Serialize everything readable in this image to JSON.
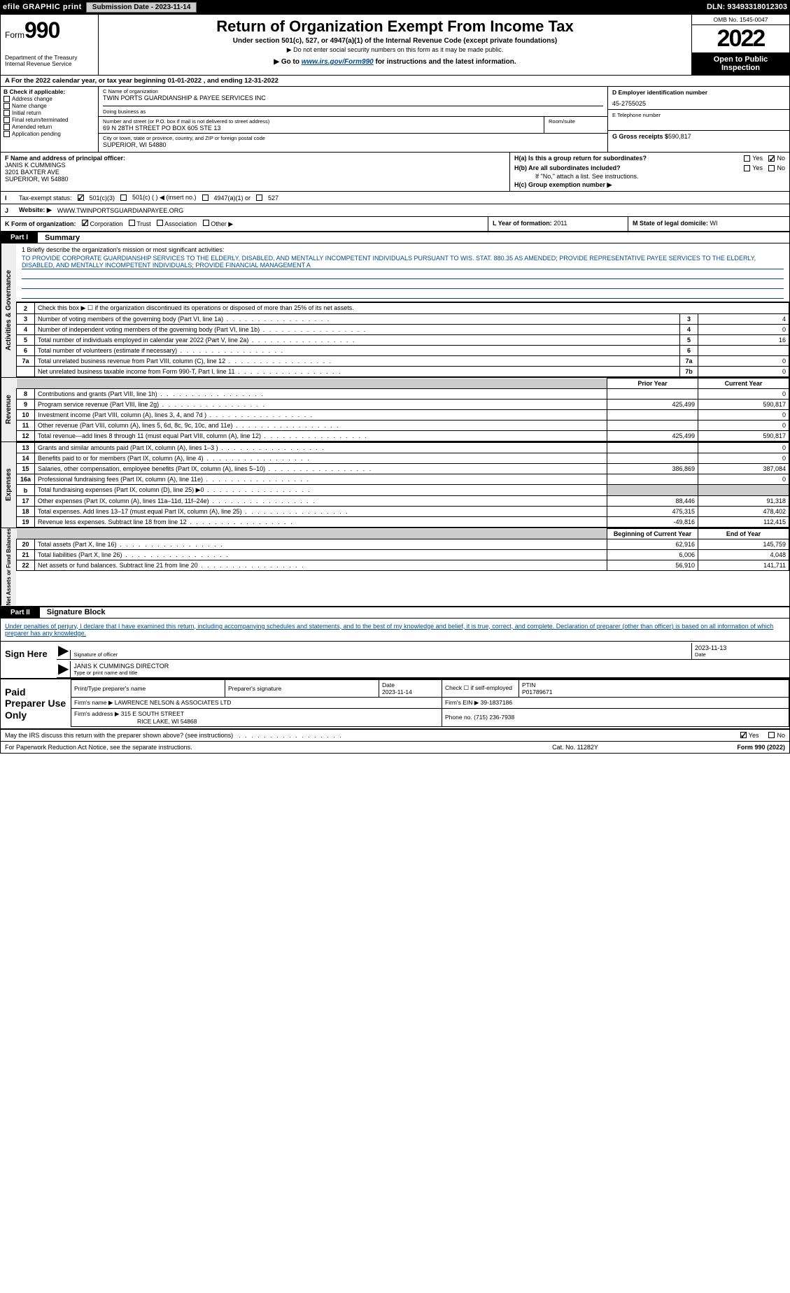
{
  "topbar": {
    "efile": "efile GRAPHIC print",
    "submission_label": "Submission Date - 2023-11-14",
    "dln": "DLN: 93493318012303"
  },
  "header": {
    "form_word": "Form",
    "form_number": "990",
    "title": "Return of Organization Exempt From Income Tax",
    "subtitle": "Under section 501(c), 527, or 4947(a)(1) of the Internal Revenue Code (except private foundations)",
    "note_ssn": "▶ Do not enter social security numbers on this form as it may be made public.",
    "goto_pre": "▶ Go to ",
    "goto_link": "www.irs.gov/Form990",
    "goto_post": " for instructions and the latest information.",
    "dept": "Department of the Treasury\nInternal Revenue Service",
    "omb": "OMB No. 1545-0047",
    "year": "2022",
    "open_public": "Open to Public Inspection"
  },
  "line_a": "A For the 2022 calendar year, or tax year beginning 01-01-2022    , and ending 12-31-2022",
  "box_b": {
    "label": "B Check if applicable:",
    "items": [
      "Address change",
      "Name change",
      "Initial return",
      "Final return/terminated",
      "Amended return",
      "Application pending"
    ]
  },
  "box_c": {
    "name_lbl": "C Name of organization",
    "name": "TWIN PORTS GUARDIANSHIP & PAYEE SERVICES INC",
    "dba_lbl": "Doing business as",
    "street_lbl": "Number and street (or P.O. box if mail is not delivered to street address)",
    "room_lbl": "Room/suite",
    "street": "69 N 28TH STREET PO BOX 605 STE 13",
    "city_lbl": "City or town, state or province, country, and ZIP or foreign postal code",
    "city": "SUPERIOR, WI  54880"
  },
  "box_d": {
    "ein_lbl": "D Employer identification number",
    "ein": "45-2755025",
    "phone_lbl": "E Telephone number",
    "phone": "",
    "gross_lbl": "G Gross receipts $",
    "gross": "590,817"
  },
  "box_f": {
    "label": "F  Name and address of principal officer:",
    "name": "JANIS K CUMMINGS",
    "addr1": "3201 BAXTER AVE",
    "addr2": "SUPERIOR, WI  54880"
  },
  "box_h": {
    "a": "H(a)  Is this a group return for subordinates?",
    "b": "H(b)  Are all subordinates included?",
    "note": "If \"No,\" attach a list. See instructions.",
    "c": "H(c)  Group exemption number ▶",
    "yes": "Yes",
    "no": "No"
  },
  "line_i": {
    "label": "Tax-exempt status:",
    "opt1": "501(c)(3)",
    "opt2": "501(c) (   ) ◀ (insert no.)",
    "opt3": "4947(a)(1) or",
    "opt4": "527"
  },
  "line_j": {
    "label": "Website: ▶",
    "url": "WWW.TWINPORTSGUARDIANPAYEE.ORG"
  },
  "line_k": {
    "label": "K Form of organization:",
    "opts": [
      "Corporation",
      "Trust",
      "Association",
      "Other ▶"
    ]
  },
  "line_l": {
    "label": "L Year of formation:",
    "val": "2011"
  },
  "line_m": {
    "label": "M State of legal domicile:",
    "val": "WI"
  },
  "part1": {
    "tab": "Part I",
    "title": "Summary"
  },
  "mission": {
    "lead": "1  Briefly describe the organization's mission or most significant activities:",
    "text": "TO PROVIDE CORPORATE GUARDIANSHIP SERVICES TO THE ELDERLY, DISABLED, AND MENTALLY INCOMPETENT INDIVIDUALS PURSUANT TO WIS. STAT. 880.35 AS AMENDED; PROVIDE REPRESENTATIVE PAYEE SERVICES TO THE ELDERLY, DISABLED, AND MENTALLY INCOMPETENT INDIVIDUALS; PROVIDE FINANCIAL MANAGEMENT A"
  },
  "sidetabs": [
    "Activities & Governance",
    "Revenue",
    "Expenses",
    "Net Assets or Fund Balances"
  ],
  "gov_rows": [
    {
      "n": "2",
      "t": "Check this box ▶ ☐  if the organization discontinued its operations or disposed of more than 25% of its net assets.",
      "box": "",
      "v": ""
    },
    {
      "n": "3",
      "t": "Number of voting members of the governing body (Part VI, line 1a)",
      "box": "3",
      "v": "4"
    },
    {
      "n": "4",
      "t": "Number of independent voting members of the governing body (Part VI, line 1b)",
      "box": "4",
      "v": "0"
    },
    {
      "n": "5",
      "t": "Total number of individuals employed in calendar year 2022 (Part V, line 2a)",
      "box": "5",
      "v": "16"
    },
    {
      "n": "6",
      "t": "Total number of volunteers (estimate if necessary)",
      "box": "6",
      "v": ""
    },
    {
      "n": "7a",
      "t": "Total unrelated business revenue from Part VIII, column (C), line 12",
      "box": "7a",
      "v": "0"
    },
    {
      "n": "",
      "t": "Net unrelated business taxable income from Form 990-T, Part I, line 11",
      "box": "7b",
      "v": "0"
    }
  ],
  "col_hdr": {
    "prior": "Prior Year",
    "current": "Current Year"
  },
  "rev_rows": [
    {
      "n": "8",
      "t": "Contributions and grants (Part VIII, line 1h)",
      "p": "",
      "c": "0"
    },
    {
      "n": "9",
      "t": "Program service revenue (Part VIII, line 2g)",
      "p": "425,499",
      "c": "590,817"
    },
    {
      "n": "10",
      "t": "Investment income (Part VIII, column (A), lines 3, 4, and 7d )",
      "p": "",
      "c": "0"
    },
    {
      "n": "11",
      "t": "Other revenue (Part VIII, column (A), lines 5, 6d, 8c, 9c, 10c, and 11e)",
      "p": "",
      "c": "0"
    },
    {
      "n": "12",
      "t": "Total revenue—add lines 8 through 11 (must equal Part VIII, column (A), line 12)",
      "p": "425,499",
      "c": "590,817"
    }
  ],
  "exp_rows": [
    {
      "n": "13",
      "t": "Grants and similar amounts paid (Part IX, column (A), lines 1–3 )",
      "p": "",
      "c": "0"
    },
    {
      "n": "14",
      "t": "Benefits paid to or for members (Part IX, column (A), line 4)",
      "p": "",
      "c": "0"
    },
    {
      "n": "15",
      "t": "Salaries, other compensation, employee benefits (Part IX, column (A), lines 5–10)",
      "p": "386,869",
      "c": "387,084"
    },
    {
      "n": "16a",
      "t": "Professional fundraising fees (Part IX, column (A), line 11e)",
      "p": "",
      "c": "0"
    },
    {
      "n": "b",
      "t": "Total fundraising expenses (Part IX, column (D), line 25) ▶0",
      "p": "GRAY",
      "c": "GRAY"
    },
    {
      "n": "17",
      "t": "Other expenses (Part IX, column (A), lines 11a–11d, 11f–24e)",
      "p": "88,446",
      "c": "91,318"
    },
    {
      "n": "18",
      "t": "Total expenses. Add lines 13–17 (must equal Part IX, column (A), line 25)",
      "p": "475,315",
      "c": "478,402"
    },
    {
      "n": "19",
      "t": "Revenue less expenses. Subtract line 18 from line 12",
      "p": "-49,816",
      "c": "112,415"
    }
  ],
  "net_hdr": {
    "begin": "Beginning of Current Year",
    "end": "End of Year"
  },
  "net_rows": [
    {
      "n": "20",
      "t": "Total assets (Part X, line 16)",
      "p": "62,916",
      "c": "145,759"
    },
    {
      "n": "21",
      "t": "Total liabilities (Part X, line 26)",
      "p": "6,006",
      "c": "4,048"
    },
    {
      "n": "22",
      "t": "Net assets or fund balances. Subtract line 21 from line 20",
      "p": "56,910",
      "c": "141,711"
    }
  ],
  "part2": {
    "tab": "Part II",
    "title": "Signature Block"
  },
  "penalties": "Under penalties of perjury, I declare that I have examined this return, including accompanying schedules and statements, and to the best of my knowledge and belief, it is true, correct, and complete. Declaration of preparer (other than officer) is based on all information of which preparer has any knowledge.",
  "sign": {
    "here": "Sign Here",
    "sig_lbl": "Signature of officer",
    "date_lbl": "Date",
    "date": "2023-11-13",
    "name": "JANIS K CUMMINGS  DIRECTOR",
    "name_lbl": "Type or print name and title"
  },
  "prep": {
    "title": "Paid Preparer Use Only",
    "hdr": [
      "Print/Type preparer's name",
      "Preparer's signature",
      "Date",
      "Check ☐ if self-employed",
      "PTIN"
    ],
    "date": "2023-11-14",
    "ptin": "P01789671",
    "firm_lbl": "Firm's name   ▶",
    "firm": "LAWRENCE NELSON & ASSOCIATES LTD",
    "ein_lbl": "Firm's EIN ▶",
    "ein": "39-1837186",
    "addr_lbl": "Firm's address ▶",
    "addr1": "315 E SOUTH STREET",
    "addr2": "RICE LAKE, WI  54868",
    "phone_lbl": "Phone no.",
    "phone": "(715) 236-7938"
  },
  "may_irs": "May the IRS discuss this return with the preparer shown above? (see instructions)",
  "footer": {
    "pra": "For Paperwork Reduction Act Notice, see the separate instructions.",
    "cat": "Cat. No. 11282Y",
    "form": "Form 990 (2022)"
  },
  "yes": "Yes",
  "no": "No"
}
